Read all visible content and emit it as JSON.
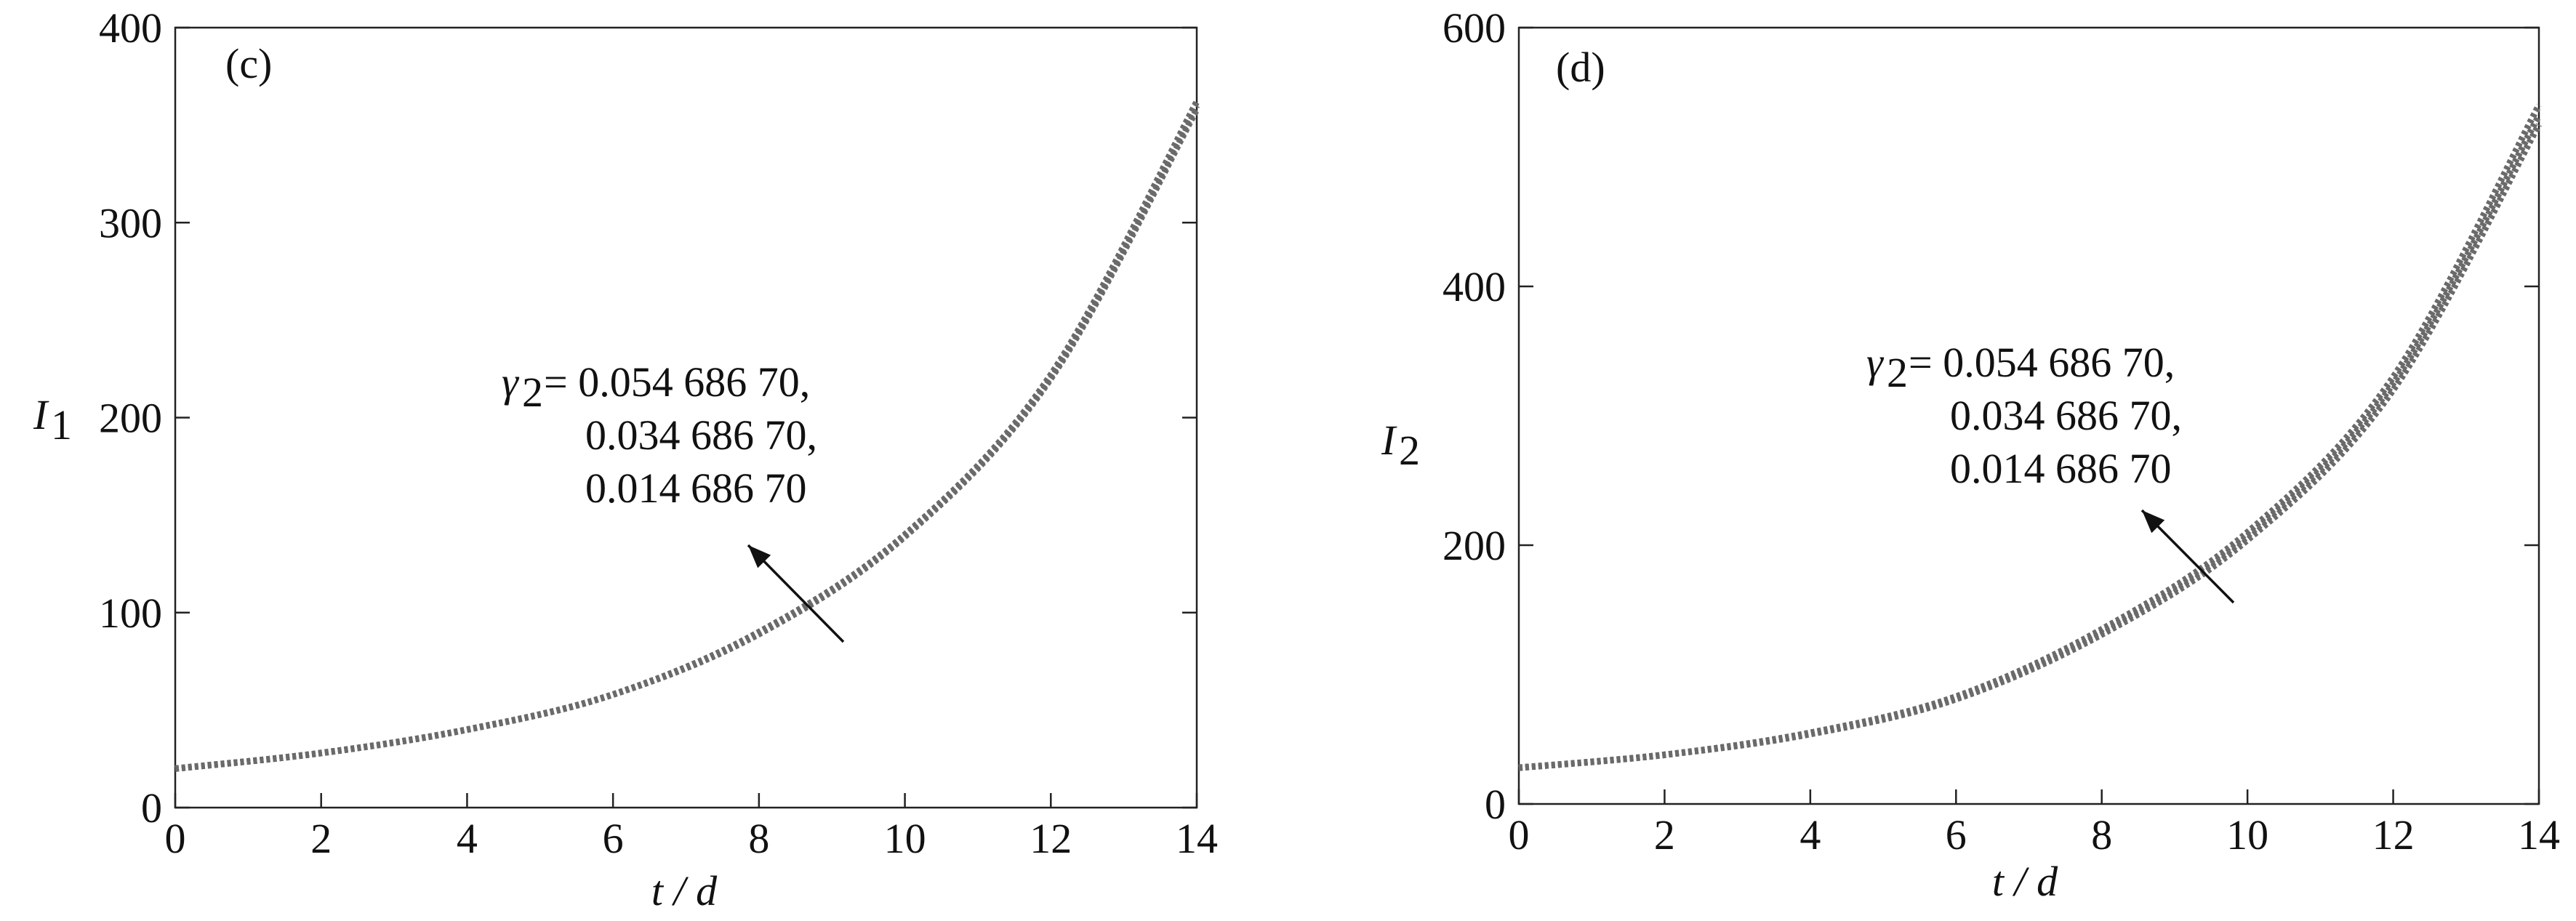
{
  "chart_data": [
    {
      "type": "line",
      "panel_label": "(c)",
      "ylabel": {
        "symbol": "I",
        "subscript": "1"
      },
      "xlabel": "t / d",
      "annotation": {
        "symbol": "γ",
        "subscript": "2",
        "lines": [
          "= 0.054 686 70,",
          "0.034 686 70,",
          "0.014 686 70"
        ]
      },
      "x": [
        0,
        2,
        4,
        6,
        8,
        10,
        12,
        14
      ],
      "series": [
        {
          "color": "#6a6a6a",
          "values": [
            20,
            28,
            40,
            58,
            90,
            140,
            222,
            362
          ]
        },
        {
          "color": "#6a6a6a",
          "values": [
            20,
            28,
            40,
            58,
            90,
            140,
            221,
            360
          ]
        },
        {
          "color": "#6a6a6a",
          "values": [
            20,
            28,
            40,
            58,
            89,
            139,
            220,
            358
          ]
        }
      ],
      "xlim": [
        0,
        14
      ],
      "xticks": [
        0,
        2,
        4,
        6,
        8,
        10,
        12,
        14
      ],
      "ylim": [
        0,
        400
      ],
      "yticks": [
        0,
        100,
        200,
        300,
        400
      ]
    },
    {
      "type": "line",
      "panel_label": "(d)",
      "ylabel": {
        "symbol": "I",
        "subscript": "2"
      },
      "xlabel": "t / d",
      "annotation": {
        "symbol": "γ",
        "subscript": "2",
        "lines": [
          "= 0.054 686 70,",
          "0.034 686 70,",
          "0.014 686 70"
        ]
      },
      "x": [
        0,
        2,
        4,
        6,
        8,
        10,
        12,
        14
      ],
      "series": [
        {
          "color": "#6a6a6a",
          "values": [
            28,
            38,
            55,
            83,
            135,
            210,
            330,
            540
          ]
        },
        {
          "color": "#6a6a6a",
          "values": [
            28,
            38,
            55,
            82,
            133,
            207,
            325,
            532
          ]
        },
        {
          "color": "#6a6a6a",
          "values": [
            28,
            38,
            54,
            81,
            131,
            204,
            320,
            525
          ]
        }
      ],
      "xlim": [
        0,
        14
      ],
      "xticks": [
        0,
        2,
        4,
        6,
        8,
        10,
        12,
        14
      ],
      "ylim": [
        0,
        600
      ],
      "yticks": [
        0,
        200,
        400,
        600
      ]
    }
  ]
}
